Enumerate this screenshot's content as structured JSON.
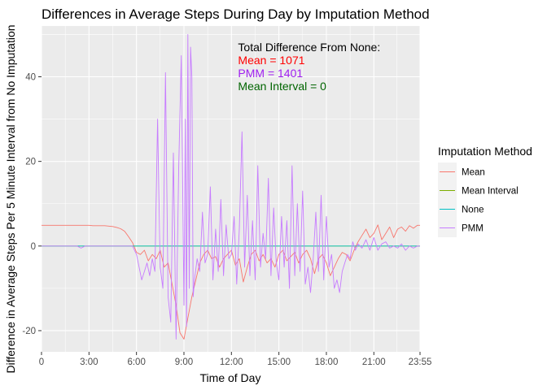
{
  "chart_data": {
    "type": "line",
    "title": "Differences in Average Steps During Day by Imputation Method",
    "xlabel": "Time of Day",
    "ylabel": "Difference in Average Steps Per 5 Minute Interval from No Imputation",
    "xlim": [
      0,
      1435
    ],
    "ylim": [
      -25,
      52
    ],
    "x_ticks": [
      {
        "x": 0,
        "label": "0"
      },
      {
        "x": 180,
        "label": "3:00"
      },
      {
        "x": 360,
        "label": "6:00"
      },
      {
        "x": 540,
        "label": "9:00"
      },
      {
        "x": 720,
        "label": "12:00"
      },
      {
        "x": 900,
        "label": "15:00"
      },
      {
        "x": 1080,
        "label": "18:00"
      },
      {
        "x": 1260,
        "label": "21:00"
      },
      {
        "x": 1435,
        "label": "23:55"
      }
    ],
    "y_ticks": [
      -20,
      0,
      20,
      40
    ],
    "grid": true,
    "legend": {
      "title": "Imputation Method",
      "position": "right",
      "entries": [
        {
          "name": "Mean",
          "color": "#F8766D"
        },
        {
          "name": "Mean Interval",
          "color": "#7CAE00"
        },
        {
          "name": "None",
          "color": "#00BFC4"
        },
        {
          "name": "PMM",
          "color": "#C77CFF"
        }
      ]
    },
    "annotation": {
      "heading": "Total Difference From None:",
      "lines": [
        {
          "text": "Mean = 1071",
          "color": "#FF0000"
        },
        {
          "text": "PMM = 1401",
          "color": "#A020F0"
        },
        {
          "text": "Mean Interval = 0",
          "color": "#006400"
        }
      ],
      "x": 745,
      "y": 46
    },
    "series": [
      {
        "name": "Mean",
        "color": "#F8766D",
        "x": [
          0,
          15,
          30,
          45,
          60,
          75,
          90,
          105,
          120,
          135,
          150,
          165,
          180,
          195,
          210,
          225,
          240,
          255,
          270,
          285,
          300,
          315,
          330,
          345,
          360,
          375,
          390,
          405,
          420,
          435,
          450,
          465,
          480,
          495,
          510,
          525,
          540,
          555,
          570,
          585,
          600,
          615,
          630,
          645,
          660,
          675,
          690,
          705,
          720,
          735,
          750,
          765,
          780,
          795,
          810,
          825,
          840,
          855,
          870,
          885,
          900,
          915,
          930,
          945,
          960,
          975,
          990,
          1005,
          1020,
          1035,
          1050,
          1065,
          1080,
          1095,
          1110,
          1125,
          1140,
          1155,
          1170,
          1185,
          1200,
          1215,
          1230,
          1245,
          1260,
          1275,
          1290,
          1305,
          1320,
          1335,
          1350,
          1365,
          1380,
          1395,
          1410,
          1425,
          1435
        ],
        "y": [
          4.9,
          4.9,
          4.9,
          4.9,
          4.9,
          4.9,
          4.9,
          4.9,
          4.9,
          4.9,
          4.9,
          4.9,
          4.9,
          4.8,
          4.8,
          4.8,
          4.8,
          4.7,
          4.6,
          4.4,
          4.1,
          3.5,
          2.2,
          0.8,
          -1.5,
          -2.0,
          -1.0,
          -3.5,
          -2.0,
          -3.0,
          -1.0,
          -5.0,
          -4.0,
          -9.0,
          -14.0,
          -20.5,
          -22.0,
          -17.0,
          -12.0,
          -8.0,
          -4.0,
          -2.0,
          -1.0,
          -3.0,
          -2.5,
          -5.0,
          -3.0,
          -2.0,
          -1.0,
          -4.5,
          -3.0,
          -8.5,
          -5.0,
          -2.0,
          -1.0,
          -3.5,
          -2.0,
          -4.0,
          -3.0,
          -5.0,
          -2.0,
          -1.0,
          -3.5,
          -2.5,
          -1.5,
          -4.0,
          -2.0,
          -1.0,
          -3.0,
          -6.5,
          -3.0,
          -2.0,
          -4.0,
          -7.0,
          -5.0,
          -3.0,
          -1.5,
          -2.0,
          -3.5,
          -1.0,
          1.0,
          2.5,
          4.0,
          2.0,
          3.0,
          5.0,
          1.5,
          3.0,
          4.5,
          2.0,
          4.0,
          4.5,
          3.5,
          4.8,
          4.2,
          4.9,
          4.9
        ]
      },
      {
        "name": "Mean Interval",
        "color": "#7CAE00",
        "x": [
          0,
          1435
        ],
        "y": [
          0,
          0
        ]
      },
      {
        "name": "None",
        "color": "#00BFC4",
        "x": [
          0,
          1435
        ],
        "y": [
          0,
          0
        ]
      },
      {
        "name": "PMM",
        "color": "#C77CFF",
        "x": [
          0,
          15,
          30,
          45,
          60,
          75,
          90,
          105,
          120,
          135,
          150,
          165,
          180,
          195,
          210,
          225,
          240,
          255,
          270,
          285,
          300,
          315,
          330,
          345,
          360,
          370,
          380,
          390,
          400,
          410,
          420,
          430,
          440,
          450,
          460,
          470,
          480,
          490,
          500,
          510,
          520,
          530,
          540,
          545,
          550,
          555,
          560,
          565,
          570,
          575,
          580,
          590,
          600,
          610,
          620,
          630,
          640,
          650,
          660,
          670,
          680,
          690,
          700,
          710,
          720,
          730,
          740,
          750,
          760,
          770,
          780,
          790,
          800,
          810,
          820,
          830,
          840,
          850,
          860,
          870,
          880,
          890,
          900,
          910,
          920,
          930,
          940,
          950,
          960,
          970,
          980,
          990,
          1000,
          1010,
          1020,
          1030,
          1040,
          1050,
          1060,
          1070,
          1080,
          1090,
          1100,
          1110,
          1120,
          1130,
          1140,
          1150,
          1160,
          1170,
          1180,
          1190,
          1200,
          1215,
          1230,
          1245,
          1260,
          1275,
          1290,
          1305,
          1320,
          1335,
          1350,
          1365,
          1380,
          1395,
          1410,
          1425,
          1435
        ],
        "y": [
          0,
          0,
          0,
          0,
          0,
          0,
          0,
          0,
          0,
          0,
          -0.5,
          0,
          0,
          0,
          0,
          0,
          0,
          0,
          0,
          0,
          0,
          0,
          0,
          0,
          -2.0,
          -5.0,
          -8.0,
          -6.0,
          -4.0,
          -7.0,
          -3.0,
          -6.0,
          30.0,
          -5.0,
          -10.0,
          41.0,
          -12.0,
          -18.0,
          22.0,
          -22.0,
          18.0,
          45.0,
          -14.0,
          30.0,
          -19.0,
          50.0,
          -10.0,
          47.0,
          40.0,
          -12.0,
          -8.0,
          -3.0,
          -6.0,
          8.0,
          -4.0,
          -2.0,
          14.0,
          -8.0,
          4.0,
          -6.0,
          11.0,
          -7.0,
          5.0,
          -3.0,
          -2.0,
          7.0,
          -9.0,
          4.0,
          27.0,
          -5.0,
          12.0,
          -7.0,
          6.0,
          -8.0,
          19.0,
          -5.0,
          3.0,
          -3.0,
          16.0,
          -7.0,
          9.0,
          -4.0,
          -8.0,
          7.0,
          -5.0,
          6.0,
          -10.0,
          19.0,
          -7.0,
          10.0,
          -6.0,
          13.0,
          -9.0,
          -5.0,
          -11.0,
          -3.0,
          8.0,
          -6.0,
          12.0,
          -8.0,
          7.0,
          -5.0,
          -2.0,
          -10.0,
          -8.0,
          -11.0,
          -6.0,
          -4.0,
          -2.0,
          -3.0,
          1.0,
          -1.0,
          0.5,
          -0.5,
          1.5,
          -1.0,
          2.0,
          -1.0,
          0.5,
          1.0,
          -0.5,
          0.0,
          -0.5,
          0.5,
          -1.0,
          0.0,
          -0.5,
          0.0,
          0.0
        ]
      }
    ]
  }
}
